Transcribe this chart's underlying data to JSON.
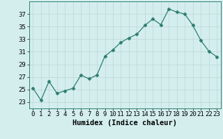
{
  "x": [
    0,
    1,
    2,
    3,
    4,
    5,
    6,
    7,
    8,
    9,
    10,
    11,
    12,
    13,
    14,
    15,
    16,
    17,
    18,
    19,
    20,
    21,
    22,
    23
  ],
  "y": [
    25.2,
    23.3,
    26.3,
    24.4,
    24.8,
    25.2,
    27.3,
    26.7,
    27.3,
    30.3,
    31.3,
    32.5,
    33.2,
    33.8,
    35.2,
    36.2,
    35.3,
    37.8,
    37.3,
    37.0,
    35.2,
    32.8,
    31.1,
    30.2
  ],
  "line_color": "#2d7d6e",
  "marker": "D",
  "marker_size": 2.5,
  "background_color": "#d4eeee",
  "grid_color": "#c0dada",
  "xlabel": "Humidex (Indice chaleur)",
  "xlabel_fontsize": 7.5,
  "tick_fontsize": 6.5,
  "ylim": [
    22,
    39
  ],
  "yticks": [
    23,
    25,
    27,
    29,
    31,
    33,
    35,
    37
  ],
  "xlim": [
    -0.5,
    23.5
  ],
  "xticks": [
    0,
    1,
    2,
    3,
    4,
    5,
    6,
    7,
    8,
    9,
    10,
    11,
    12,
    13,
    14,
    15,
    16,
    17,
    18,
    19,
    20,
    21,
    22,
    23
  ]
}
